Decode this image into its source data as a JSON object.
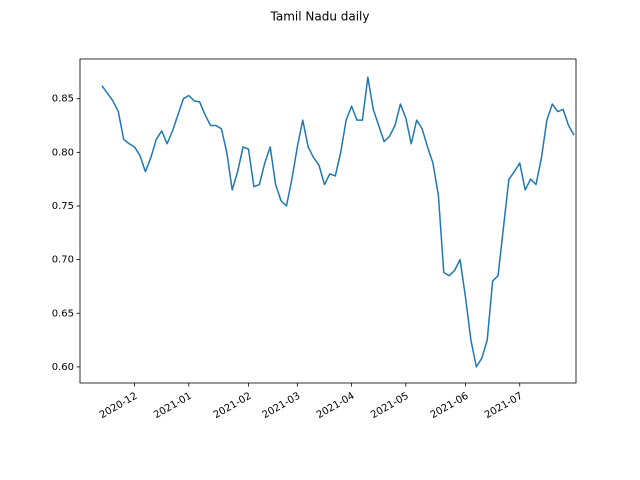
{
  "chart_data": {
    "type": "line",
    "title": "Tamil Nadu daily",
    "categories": [
      null,
      null,
      null,
      null,
      null,
      null,
      "2020-12",
      null,
      null,
      null,
      null,
      null,
      null,
      null,
      null,
      null,
      "2021-01",
      null,
      null,
      null,
      null,
      null,
      null,
      null,
      null,
      null,
      null,
      "2021-02",
      null,
      null,
      null,
      null,
      null,
      null,
      null,
      null,
      "2021-03",
      null,
      null,
      null,
      null,
      null,
      null,
      null,
      null,
      null,
      "2021-04",
      null,
      null,
      null,
      null,
      null,
      null,
      null,
      null,
      null,
      "2021-05",
      null,
      null,
      null,
      null,
      null,
      null,
      null,
      null,
      null,
      null,
      "2021-06",
      null,
      null,
      null,
      null,
      null,
      null,
      null,
      null,
      null,
      "2021-07",
      null,
      null,
      null,
      null,
      null,
      null,
      null,
      null,
      null,
      null
    ],
    "series": [
      {
        "color": "#1f77b4",
        "values": [
          0.862,
          0.855,
          0.848,
          0.838,
          0.812,
          0.808,
          0.805,
          0.797,
          0.782,
          0.795,
          0.812,
          0.82,
          0.808,
          0.82,
          0.835,
          0.85,
          0.853,
          0.848,
          0.847,
          0.835,
          0.825,
          0.825,
          0.822,
          0.8,
          0.765,
          0.782,
          0.805,
          0.803,
          0.768,
          0.77,
          0.79,
          0.805,
          0.77,
          0.755,
          0.75,
          0.775,
          0.805,
          0.83,
          0.805,
          0.795,
          0.788,
          0.77,
          0.78,
          0.778,
          0.8,
          0.83,
          0.843,
          0.83,
          0.83,
          0.87,
          0.84,
          0.825,
          0.81,
          0.815,
          0.825,
          0.845,
          0.832,
          0.808,
          0.83,
          0.822,
          0.805,
          0.79,
          0.76,
          0.688,
          0.685,
          0.69,
          0.7,
          0.665,
          0.625,
          0.6,
          0.608,
          0.625,
          0.68,
          0.685,
          0.73,
          0.775,
          0.782,
          0.79,
          0.765,
          0.775,
          0.77,
          0.795,
          0.83,
          0.845,
          0.838,
          0.84,
          0.825,
          0.816
        ]
      }
    ],
    "ylim": [
      0.585,
      0.887
    ],
    "yticks": [
      {
        "value": 0.6,
        "label": "0.60"
      },
      0.65,
      {
        "value": 0.7,
        "label": "0.70"
      },
      0.75,
      {
        "value": 0.8,
        "label": "0.80"
      },
      0.85
    ]
  }
}
